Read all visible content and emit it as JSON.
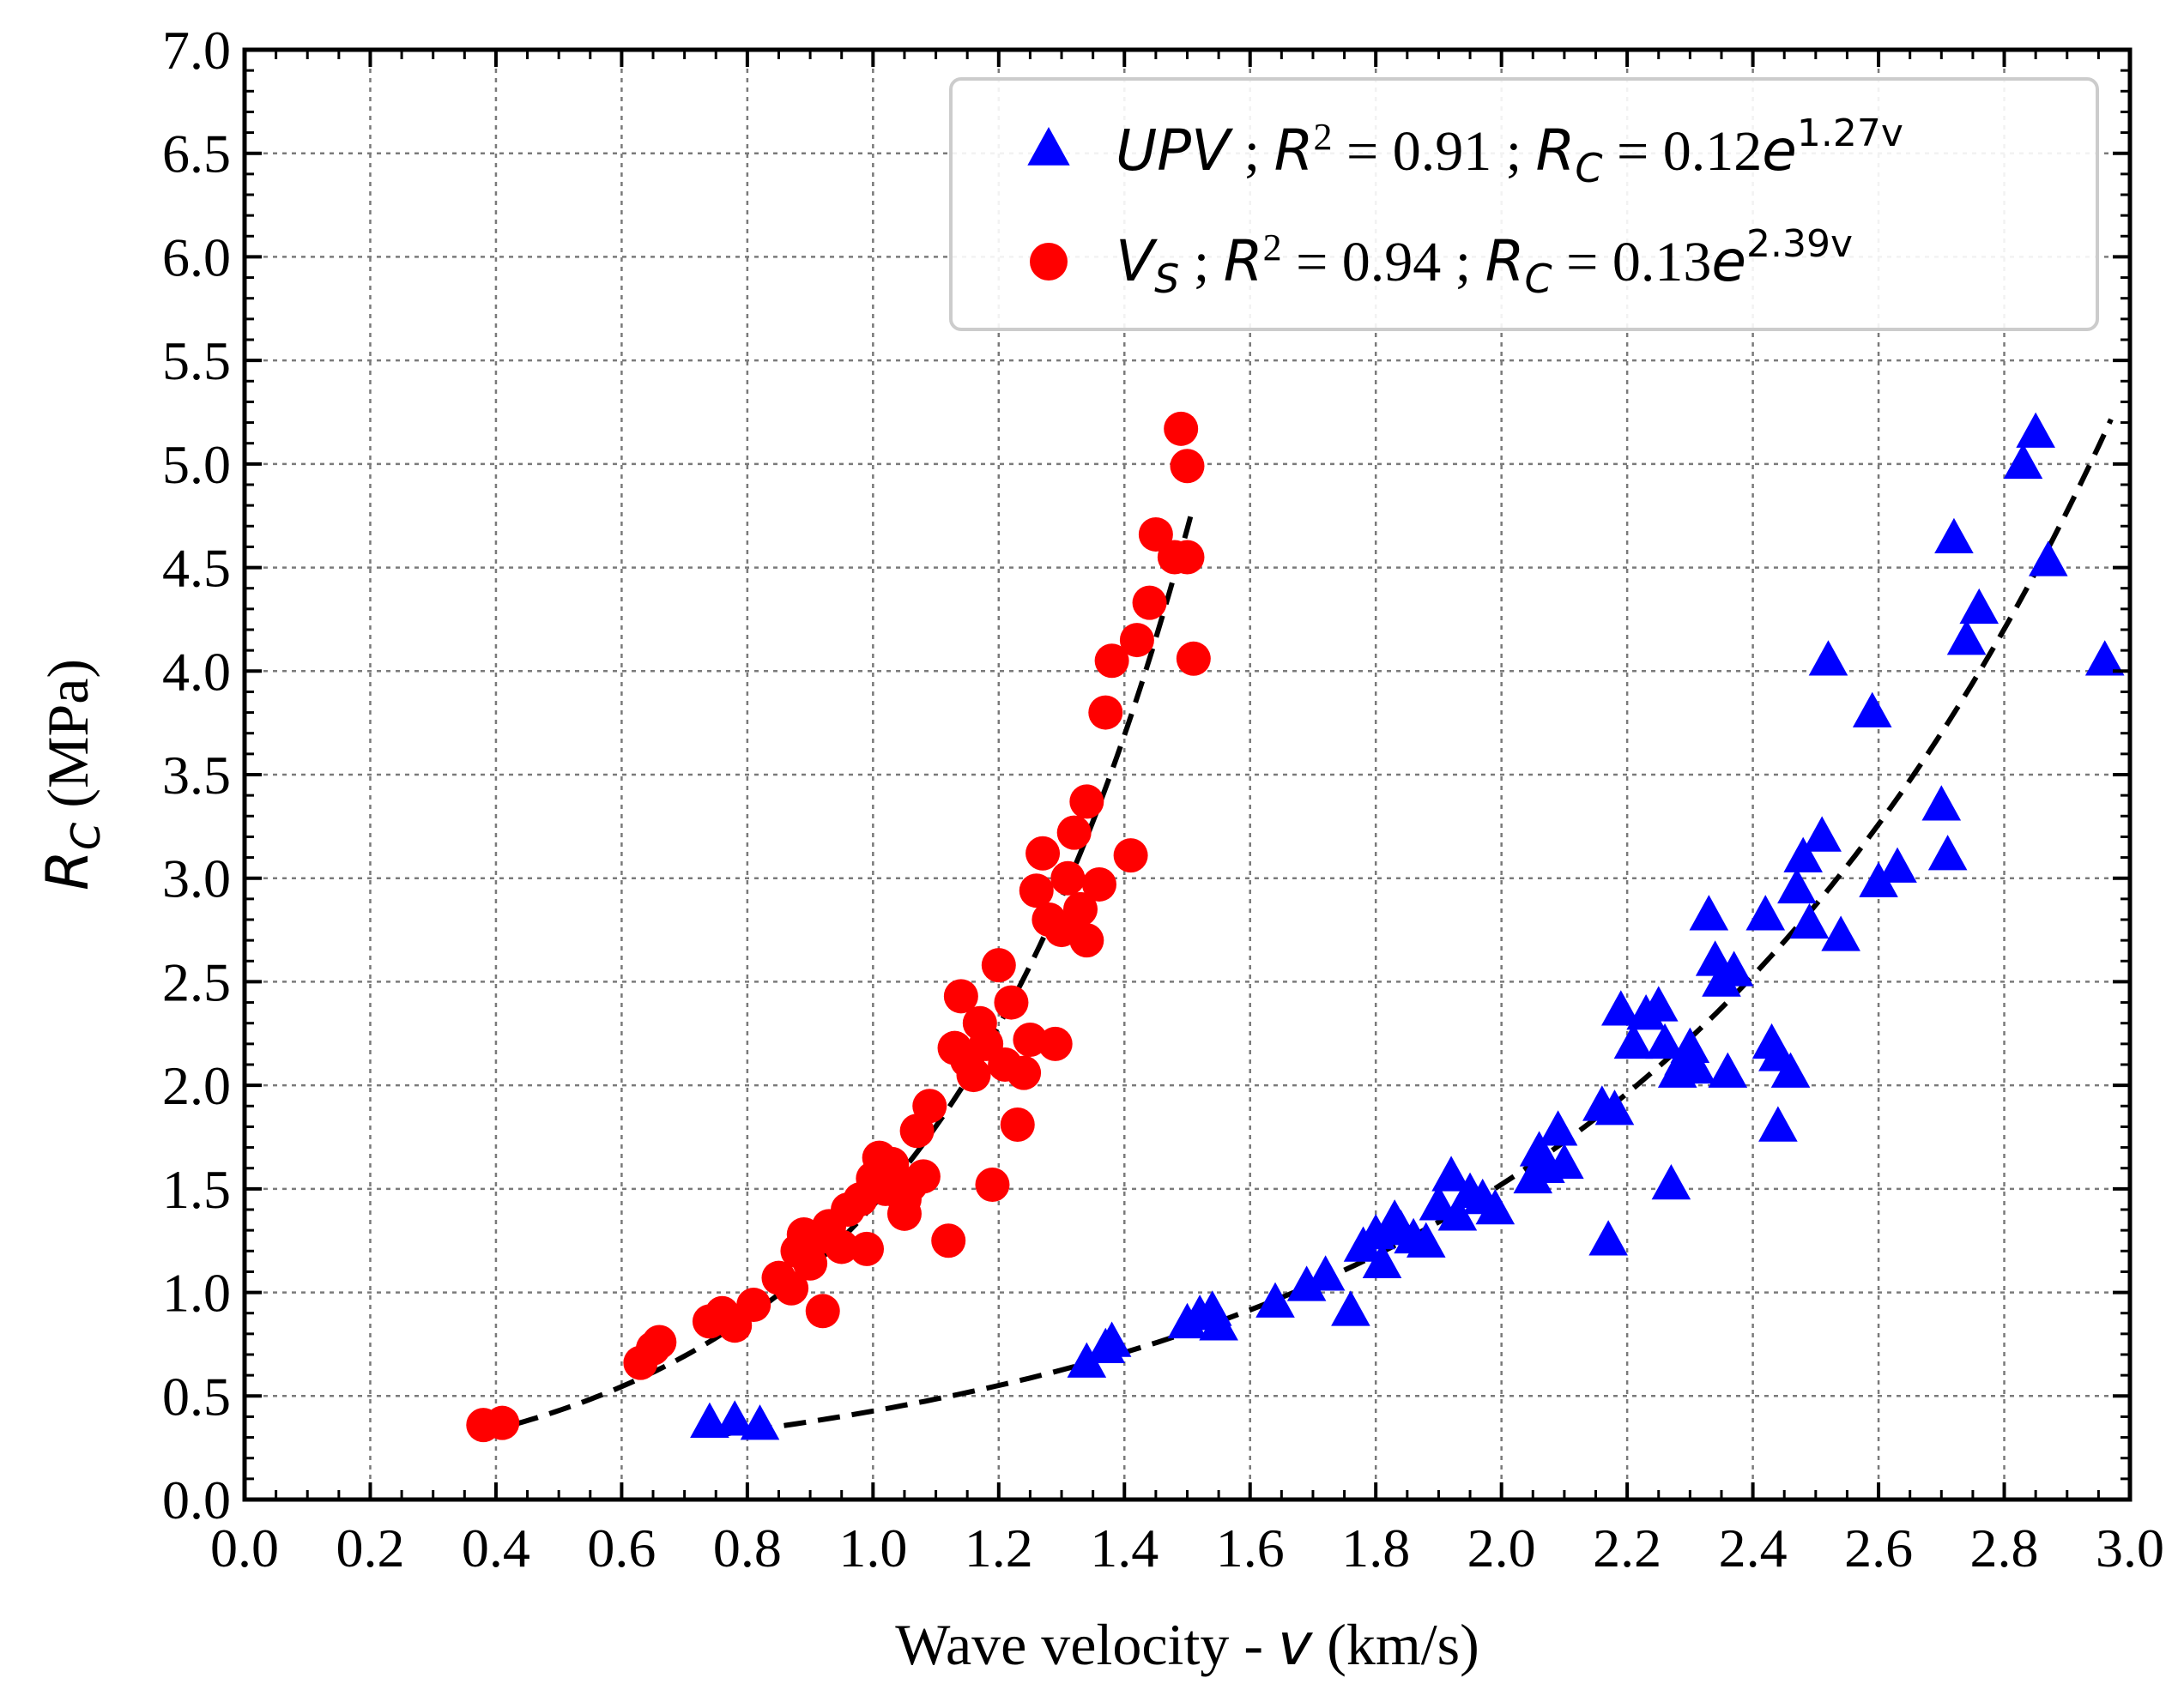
{
  "chart_data": {
    "type": "scatter",
    "title": "",
    "xlabel_parts": {
      "prefix": "Wave velocity - ",
      "symbol": "v",
      "suffix": " (km/s)"
    },
    "ylabel_parts": {
      "symbol": "R",
      "subscript": "C",
      "suffix": " (MPa)"
    },
    "xlim": [
      0.0,
      3.0
    ],
    "ylim": [
      0.0,
      7.0
    ],
    "x_ticks": [
      "0.0",
      "0.2",
      "0.4",
      "0.6",
      "0.8",
      "1.0",
      "1.2",
      "1.4",
      "1.6",
      "1.8",
      "2.0",
      "2.2",
      "2.4",
      "2.6",
      "2.8",
      "3.0"
    ],
    "y_ticks": [
      "0.0",
      "0.5",
      "1.0",
      "1.5",
      "2.0",
      "2.5",
      "3.0",
      "3.5",
      "4.0",
      "4.5",
      "5.0",
      "5.5",
      "6.0",
      "6.5",
      "7.0"
    ],
    "grid": true,
    "legend_position": "top-right",
    "colors": {
      "upv": "#0000ff",
      "vs": "#ff0000",
      "fit": "#000000"
    },
    "series": [
      {
        "name": "UPV",
        "marker": "triangle",
        "color": "#0000ff",
        "legend": {
          "name": "UPV",
          "sep1": " ; ",
          "r2_label": "R",
          "r2_sup": "2",
          "r2_eq": " = 0.91",
          "sep2": " ; ",
          "eq_label": "R",
          "eq_sub": "C",
          "eq_mid": " = 0.12",
          "eq_e": "e",
          "eq_exp": "1.27v"
        },
        "fit": {
          "a": 0.12,
          "b": 1.27,
          "x_range": [
            0.75,
            2.97
          ]
        },
        "points": [
          [
            0.74,
            0.37
          ],
          [
            0.78,
            0.38
          ],
          [
            0.82,
            0.36
          ],
          [
            1.34,
            0.66
          ],
          [
            1.37,
            0.73
          ],
          [
            1.38,
            0.76
          ],
          [
            1.5,
            0.85
          ],
          [
            1.52,
            0.89
          ],
          [
            1.54,
            0.91
          ],
          [
            1.55,
            0.84
          ],
          [
            1.64,
            0.95
          ],
          [
            1.69,
            1.03
          ],
          [
            1.72,
            1.08
          ],
          [
            1.76,
            0.91
          ],
          [
            1.78,
            1.22
          ],
          [
            1.8,
            1.28
          ],
          [
            1.81,
            1.14
          ],
          [
            1.83,
            1.35
          ],
          [
            1.84,
            1.3
          ],
          [
            1.86,
            1.26
          ],
          [
            1.88,
            1.24
          ],
          [
            1.9,
            1.42
          ],
          [
            1.92,
            1.56
          ],
          [
            1.93,
            1.37
          ],
          [
            1.95,
            1.48
          ],
          [
            1.97,
            1.45
          ],
          [
            1.99,
            1.4
          ],
          [
            2.05,
            1.55
          ],
          [
            2.06,
            1.68
          ],
          [
            2.07,
            1.6
          ],
          [
            2.09,
            1.78
          ],
          [
            2.1,
            1.62
          ],
          [
            2.16,
            1.9
          ],
          [
            2.17,
            1.25
          ],
          [
            2.18,
            1.88
          ],
          [
            2.19,
            2.36
          ],
          [
            2.21,
            2.2
          ],
          [
            2.23,
            2.34
          ],
          [
            2.25,
            2.38
          ],
          [
            2.26,
            2.2
          ],
          [
            2.27,
            1.52
          ],
          [
            2.28,
            2.06
          ],
          [
            2.29,
            2.12
          ],
          [
            2.3,
            2.18
          ],
          [
            2.31,
            2.08
          ],
          [
            2.33,
            2.82
          ],
          [
            2.34,
            2.6
          ],
          [
            2.35,
            2.5
          ],
          [
            2.36,
            2.06
          ],
          [
            2.37,
            2.55
          ],
          [
            2.42,
            2.82
          ],
          [
            2.43,
            2.2
          ],
          [
            2.44,
            2.14
          ],
          [
            2.44,
            1.8
          ],
          [
            2.46,
            2.06
          ],
          [
            2.47,
            2.95
          ],
          [
            2.48,
            3.1
          ],
          [
            2.49,
            2.78
          ],
          [
            2.51,
            3.2
          ],
          [
            2.52,
            4.05
          ],
          [
            2.54,
            2.72
          ],
          [
            2.59,
            3.8
          ],
          [
            2.6,
            2.98
          ],
          [
            2.63,
            3.05
          ],
          [
            2.7,
            3.35
          ],
          [
            2.71,
            3.11
          ],
          [
            2.72,
            4.64
          ],
          [
            2.74,
            4.15
          ],
          [
            2.76,
            4.3
          ],
          [
            2.83,
            5.0
          ],
          [
            2.85,
            5.15
          ],
          [
            2.87,
            4.53
          ],
          [
            2.96,
            4.05
          ]
        ]
      },
      {
        "name": "V_S",
        "marker": "circle",
        "color": "#ff0000",
        "legend": {
          "name": "V",
          "name_sub": "S",
          "sep1": " ; ",
          "r2_label": "R",
          "r2_sup": "2",
          "r2_eq": " = 0.94",
          "sep2": " ; ",
          "eq_label": "R",
          "eq_sub": "C",
          "eq_mid": " = 0.13",
          "eq_e": "e",
          "eq_exp": "2.39v"
        },
        "fit": {
          "a": 0.13,
          "b": 2.39,
          "x_range": [
            0.38,
            1.51
          ]
        },
        "points": [
          [
            0.38,
            0.36
          ],
          [
            0.41,
            0.37
          ],
          [
            0.63,
            0.66
          ],
          [
            0.65,
            0.73
          ],
          [
            0.66,
            0.76
          ],
          [
            0.74,
            0.86
          ],
          [
            0.76,
            0.9
          ],
          [
            0.78,
            0.84
          ],
          [
            0.81,
            0.94
          ],
          [
            0.85,
            1.07
          ],
          [
            0.87,
            1.02
          ],
          [
            0.88,
            1.2
          ],
          [
            0.89,
            1.28
          ],
          [
            0.9,
            1.14
          ],
          [
            0.91,
            1.26
          ],
          [
            0.92,
            0.91
          ],
          [
            0.93,
            1.32
          ],
          [
            0.95,
            1.22
          ],
          [
            0.96,
            1.4
          ],
          [
            0.98,
            1.45
          ],
          [
            0.99,
            1.21
          ],
          [
            1.0,
            1.55
          ],
          [
            1.01,
            1.65
          ],
          [
            1.02,
            1.5
          ],
          [
            1.03,
            1.62
          ],
          [
            1.05,
            1.38
          ],
          [
            1.05,
            1.45
          ],
          [
            1.06,
            1.52
          ],
          [
            1.07,
            1.78
          ],
          [
            1.08,
            1.56
          ],
          [
            1.09,
            1.9
          ],
          [
            1.12,
            1.25
          ],
          [
            1.13,
            2.18
          ],
          [
            1.14,
            2.43
          ],
          [
            1.15,
            2.12
          ],
          [
            1.16,
            2.05
          ],
          [
            1.17,
            2.3
          ],
          [
            1.18,
            2.2
          ],
          [
            1.19,
            1.52
          ],
          [
            1.2,
            2.58
          ],
          [
            1.21,
            2.1
          ],
          [
            1.22,
            2.4
          ],
          [
            1.23,
            1.81
          ],
          [
            1.24,
            2.06
          ],
          [
            1.25,
            2.22
          ],
          [
            1.26,
            2.94
          ],
          [
            1.27,
            3.12
          ],
          [
            1.28,
            2.8
          ],
          [
            1.29,
            2.2
          ],
          [
            1.3,
            2.75
          ],
          [
            1.31,
            3.0
          ],
          [
            1.32,
            3.22
          ],
          [
            1.33,
            2.85
          ],
          [
            1.34,
            2.7
          ],
          [
            1.34,
            3.37
          ],
          [
            1.36,
            2.97
          ],
          [
            1.37,
            3.8
          ],
          [
            1.38,
            4.05
          ],
          [
            1.41,
            3.11
          ],
          [
            1.42,
            4.15
          ],
          [
            1.44,
            4.33
          ],
          [
            1.45,
            4.66
          ],
          [
            1.48,
            4.55
          ],
          [
            1.49,
            5.17
          ],
          [
            1.5,
            4.99
          ],
          [
            1.51,
            4.06
          ],
          [
            1.5,
            4.55
          ]
        ]
      }
    ]
  }
}
